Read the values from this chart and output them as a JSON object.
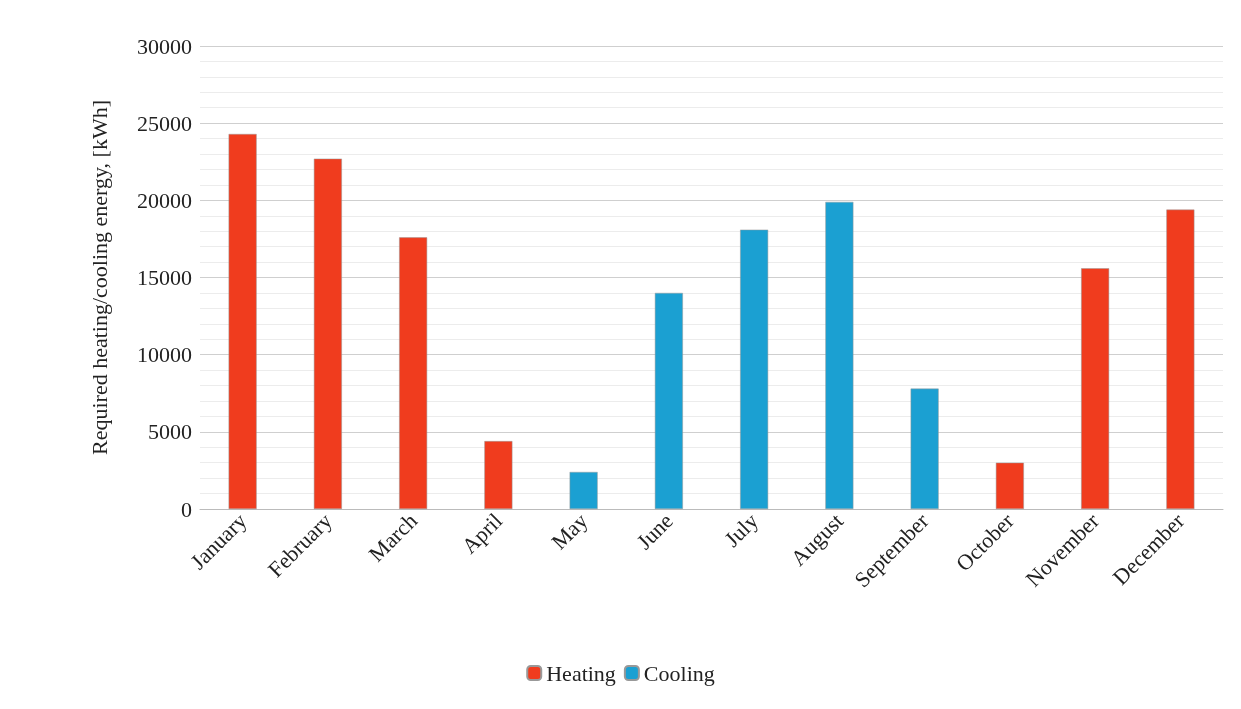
{
  "chart_data": {
    "type": "bar",
    "ylabel": "Required heating/cooling energy, [kWh]",
    "categories": [
      "January",
      "February",
      "March",
      "April",
      "May",
      "June",
      "July",
      "August",
      "September",
      "October",
      "November",
      "December"
    ],
    "series": [
      {
        "name": "Heating",
        "color": "#f03c1e",
        "values": [
          24300,
          22700,
          17600,
          4400,
          null,
          null,
          null,
          null,
          null,
          3000,
          15600,
          19400
        ]
      },
      {
        "name": "Cooling",
        "color": "#1ba0d2",
        "values": [
          null,
          null,
          null,
          null,
          2400,
          14000,
          18100,
          19900,
          7800,
          null,
          null,
          null
        ]
      }
    ],
    "stacked": true,
    "ylim": [
      0,
      30000
    ],
    "yticks": [
      0,
      5000,
      10000,
      15000,
      20000,
      25000,
      30000
    ],
    "grid": "y",
    "legend": "bottom"
  }
}
